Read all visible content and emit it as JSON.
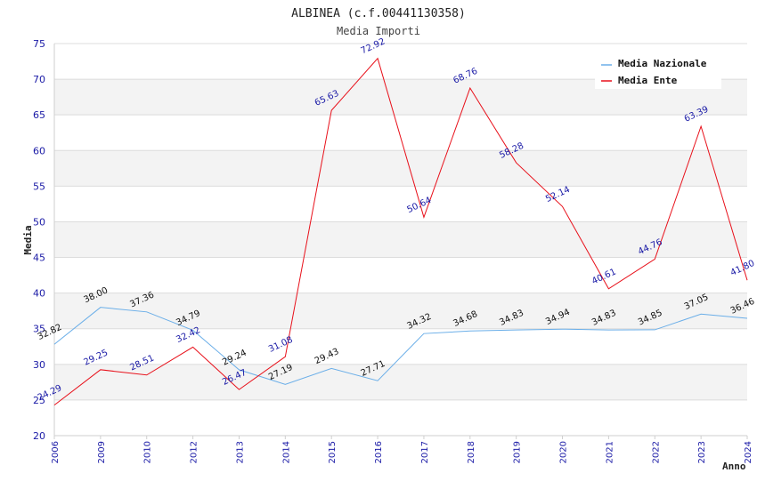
{
  "chart_data": {
    "type": "line",
    "title": "ALBINEA (c.f.00441130358)",
    "subtitle": "Media Importi",
    "xlabel": "Anno",
    "ylabel": "Media",
    "ylim": [
      20,
      75
    ],
    "yticks": [
      20,
      25,
      30,
      35,
      40,
      45,
      50,
      55,
      60,
      65,
      70,
      75
    ],
    "grid": true,
    "legend_position": "top-right",
    "categories": [
      "2006",
      "2009",
      "2010",
      "2012",
      "2013",
      "2014",
      "2015",
      "2016",
      "2017",
      "2018",
      "2019",
      "2020",
      "2021",
      "2022",
      "2023",
      "2024"
    ],
    "series": [
      {
        "name": "Media Nazionale",
        "color": "#6aaee8",
        "values": [
          32.82,
          38.0,
          37.36,
          34.79,
          29.24,
          27.19,
          29.43,
          27.71,
          34.32,
          34.68,
          34.83,
          34.94,
          34.83,
          34.85,
          37.05,
          36.46
        ],
        "labels": [
          "32.82",
          "38.00",
          "37.36",
          "34.79",
          "29.24",
          "27.19",
          "29.43",
          "27.71",
          "34.32",
          "34.68",
          "34.83",
          "34.94",
          "34.83",
          "34.85",
          "37.05",
          "36.46"
        ]
      },
      {
        "name": "Media Ente",
        "color": "#e8101a",
        "values": [
          24.29,
          29.25,
          28.51,
          32.42,
          26.47,
          31.08,
          65.63,
          72.92,
          50.64,
          68.76,
          58.28,
          52.14,
          40.61,
          44.76,
          63.39,
          41.8
        ],
        "labels": [
          "24.29",
          "29.25",
          "28.51",
          "32.42",
          "26.47",
          "31.08",
          "65.63",
          "72.92",
          "50.64",
          "68.76",
          "58.28",
          "52.14",
          "40.61",
          "44.76",
          "63.39",
          "41.80"
        ]
      }
    ]
  }
}
